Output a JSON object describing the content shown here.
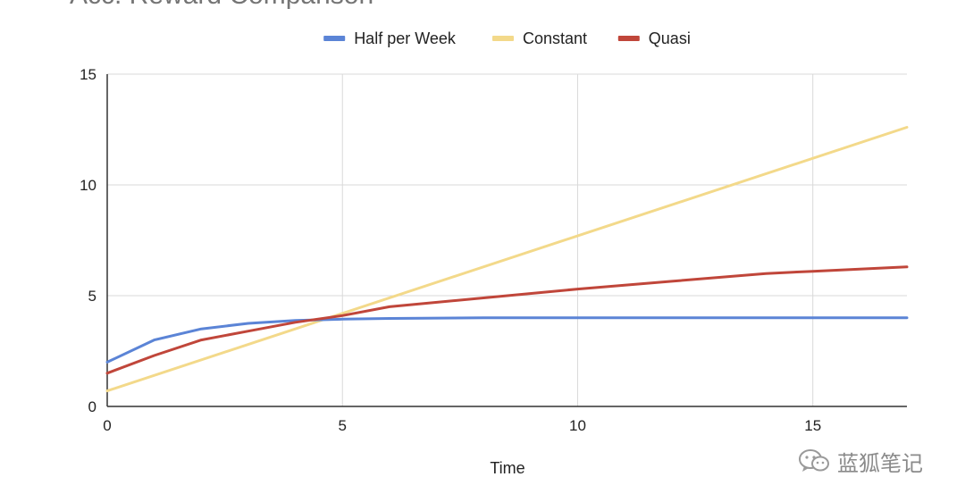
{
  "chart_data": {
    "type": "line",
    "title": "Acc. Reward Comparison",
    "xlabel": "Time",
    "ylabel": "",
    "xlim": [
      0,
      17
    ],
    "ylim": [
      0,
      15
    ],
    "xticks": [
      0,
      5,
      10,
      15
    ],
    "yticks": [
      0,
      5,
      10,
      15
    ],
    "grid": true,
    "legend_position": "top",
    "series": [
      {
        "name": "Half per Week",
        "color": "#5b84d6",
        "points": [
          [
            0,
            2.0
          ],
          [
            1,
            3.0
          ],
          [
            2,
            3.5
          ],
          [
            3,
            3.75
          ],
          [
            4,
            3.88
          ],
          [
            5,
            3.94
          ],
          [
            6,
            3.97
          ],
          [
            8,
            4.0
          ],
          [
            10,
            4.0
          ],
          [
            12,
            4.0
          ],
          [
            14,
            4.0
          ],
          [
            17,
            4.0
          ]
        ]
      },
      {
        "name": "Constant",
        "color": "#f3d98a",
        "points": [
          [
            0,
            0.7
          ],
          [
            17,
            12.6
          ]
        ]
      },
      {
        "name": "Quasi",
        "color": "#c0463a",
        "points": [
          [
            0,
            1.5
          ],
          [
            1,
            2.3
          ],
          [
            2,
            3.0
          ],
          [
            3,
            3.4
          ],
          [
            4,
            3.8
          ],
          [
            5,
            4.1
          ],
          [
            6,
            4.5
          ],
          [
            8,
            4.9
          ],
          [
            10,
            5.3
          ],
          [
            12,
            5.65
          ],
          [
            14,
            6.0
          ],
          [
            15,
            6.1
          ],
          [
            17,
            6.3
          ]
        ]
      }
    ]
  },
  "watermark": {
    "text": "蓝狐笔记"
  }
}
